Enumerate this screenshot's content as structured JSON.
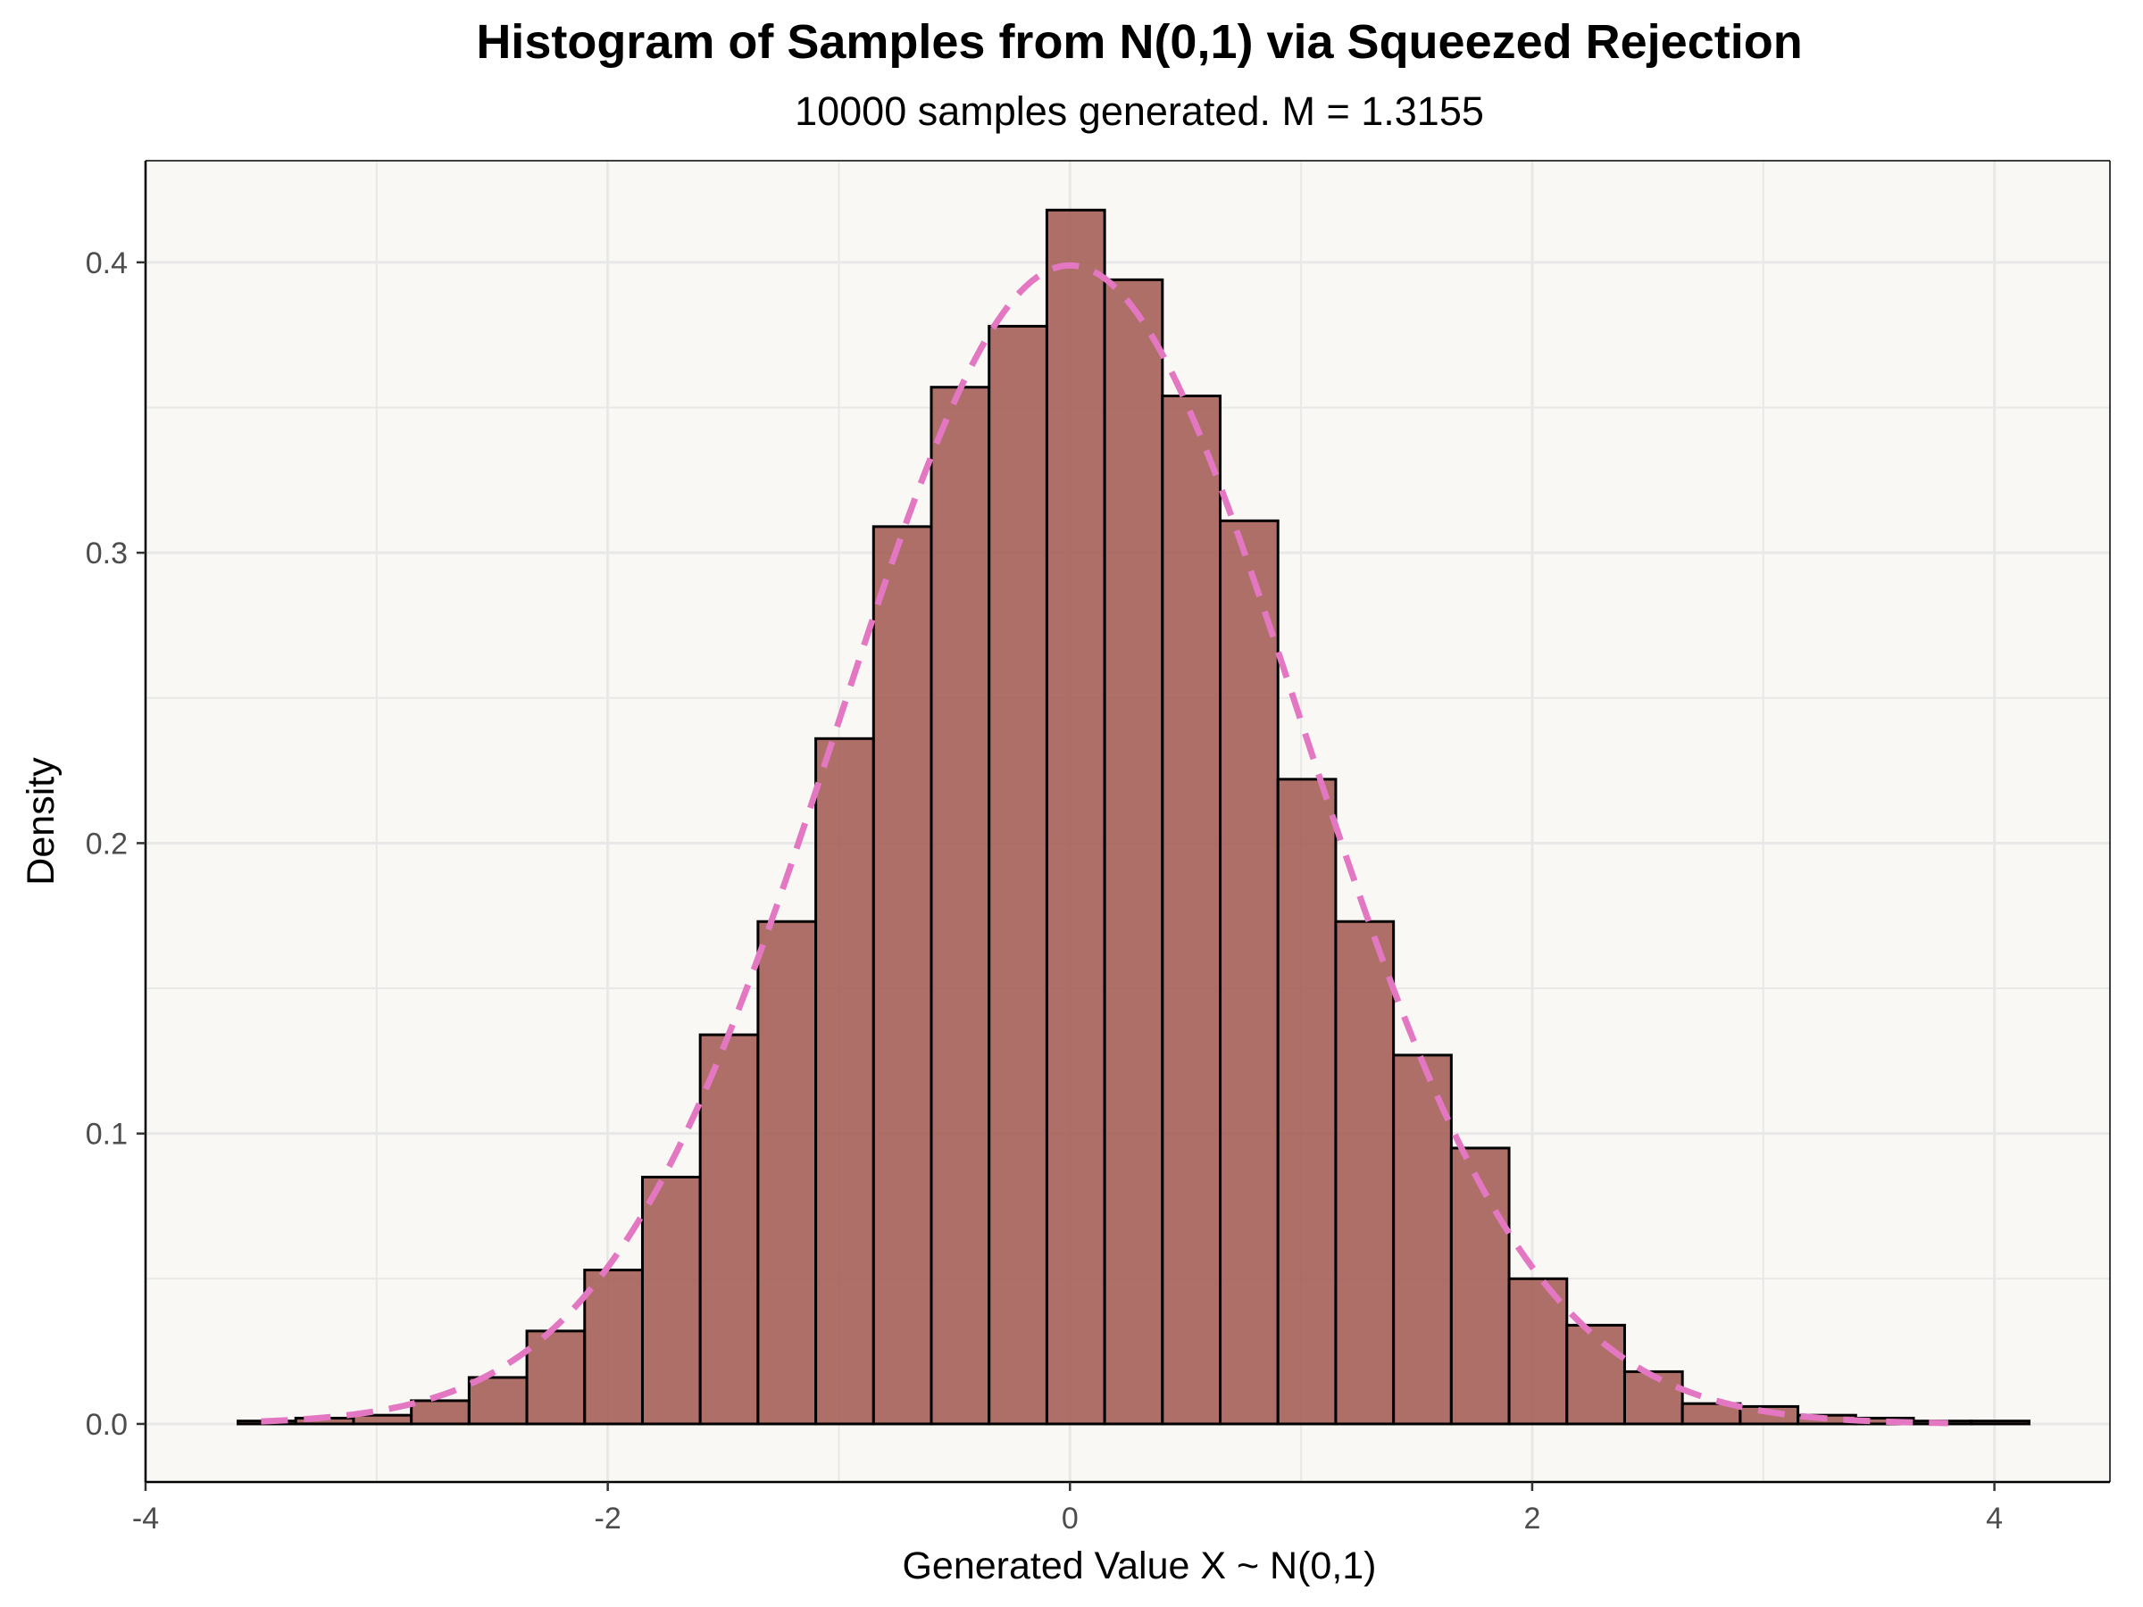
{
  "chart_data": {
    "type": "bar",
    "subtype": "histogram",
    "title": "Histogram of Samples from N(0,1) via Squeezed Rejection",
    "subtitle": "10000 samples generated. M = 1.3155",
    "xlabel": "Generated Value X ~ N(0,1)",
    "ylabel": "Density",
    "xlim": [
      -4,
      4.5
    ],
    "ylim": [
      -0.02,
      0.435
    ],
    "x_ticks": [
      -4,
      -2,
      0,
      2,
      4
    ],
    "x_tick_labels": [
      "-4",
      "-2",
      "0",
      "2",
      "4"
    ],
    "y_ticks": [
      0.0,
      0.1,
      0.2,
      0.3,
      0.4
    ],
    "y_tick_labels": [
      "0.0",
      "0.1",
      "0.2",
      "0.3",
      "0.4"
    ],
    "grid": true,
    "bin_edges": [
      -3.6,
      -3.35,
      -3.1,
      -2.85,
      -2.6,
      -2.35,
      -2.1,
      -1.85,
      -1.6,
      -1.35,
      -1.1,
      -0.85,
      -0.6,
      -0.35,
      -0.1,
      0.15,
      0.4,
      0.65,
      0.9,
      1.15,
      1.4,
      1.65,
      1.9,
      2.15,
      2.4,
      2.65,
      2.9,
      3.15,
      3.4,
      3.65,
      3.9,
      4.15
    ],
    "values": [
      0.001,
      0.002,
      0.003,
      0.008,
      0.016,
      0.032,
      0.053,
      0.085,
      0.134,
      0.173,
      0.236,
      0.309,
      0.357,
      0.378,
      0.418,
      0.394,
      0.354,
      0.311,
      0.222,
      0.173,
      0.127,
      0.095,
      0.05,
      0.034,
      0.018,
      0.007,
      0.006,
      0.003,
      0.002,
      0.001,
      0.001
    ],
    "density_curve": {
      "function": "standard normal pdf",
      "x_range": [
        -3.5,
        3.8
      ],
      "style": "dashed"
    },
    "colors": {
      "bar_fill": "#a0574e",
      "bar_outline": "#000000",
      "curve": "#e377c2",
      "panel_background": "#f9f8f5",
      "grid": "#e8e8e8"
    }
  }
}
